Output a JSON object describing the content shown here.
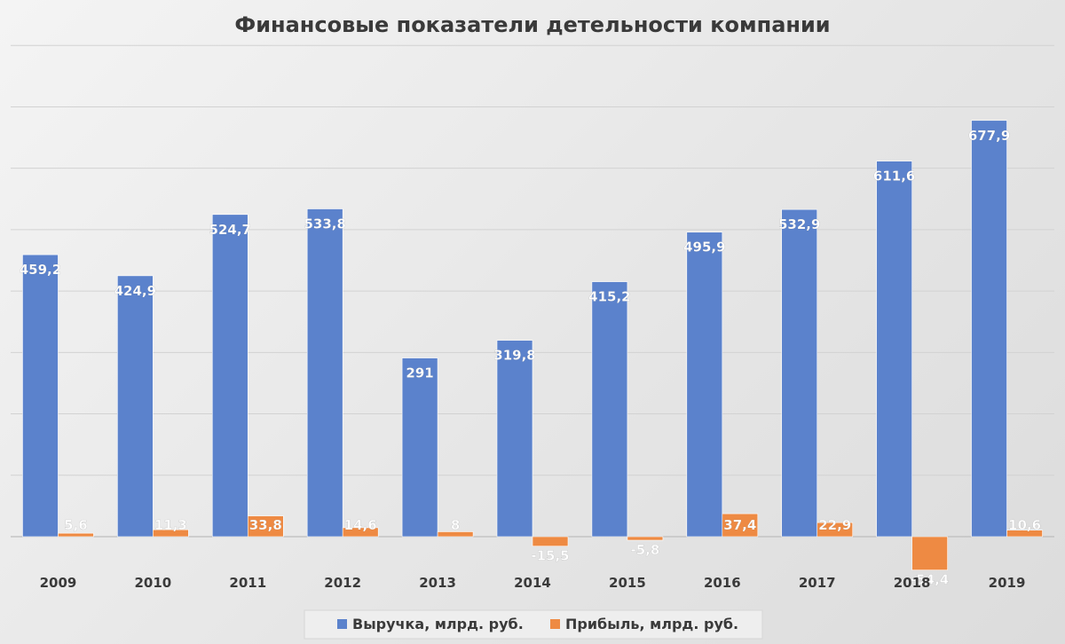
{
  "chart_data": {
    "type": "bar",
    "title": "Финансовые показатели детельности компании",
    "xlabel": "",
    "ylabel": "",
    "categories": [
      "2009",
      "2010",
      "2011",
      "2012",
      "2013",
      "2014",
      "2015",
      "2016",
      "2017",
      "2018",
      "2019"
    ],
    "series": [
      {
        "name": "Выручка, млрд. руб.",
        "color": "#5b82cc",
        "values": [
          459.2,
          424.9,
          524.7,
          533.8,
          291,
          319.8,
          415.2,
          495.9,
          532.9,
          611.6,
          677.9
        ],
        "labels": [
          "459,2",
          "424,9",
          "524,7",
          "533,8",
          "291",
          "319,8",
          "415,2",
          "495,9",
          "532,9",
          "611,6",
          "677,9"
        ]
      },
      {
        "name": "Прибыль, млрд. руб.",
        "color": "#ee8a43",
        "values": [
          5.6,
          11.3,
          33.8,
          14.6,
          8,
          -15.5,
          -5.8,
          37.4,
          22.9,
          -54.4,
          10.6
        ],
        "labels": [
          "5,6",
          "11,3",
          "33,8",
          "14,6",
          "8",
          "-15,5",
          "-5,8",
          "37,4",
          "22,9",
          "-54,4",
          "10,6"
        ]
      }
    ],
    "ylim": [
      -100,
      800
    ],
    "grid": true,
    "legend_position": "bottom"
  }
}
